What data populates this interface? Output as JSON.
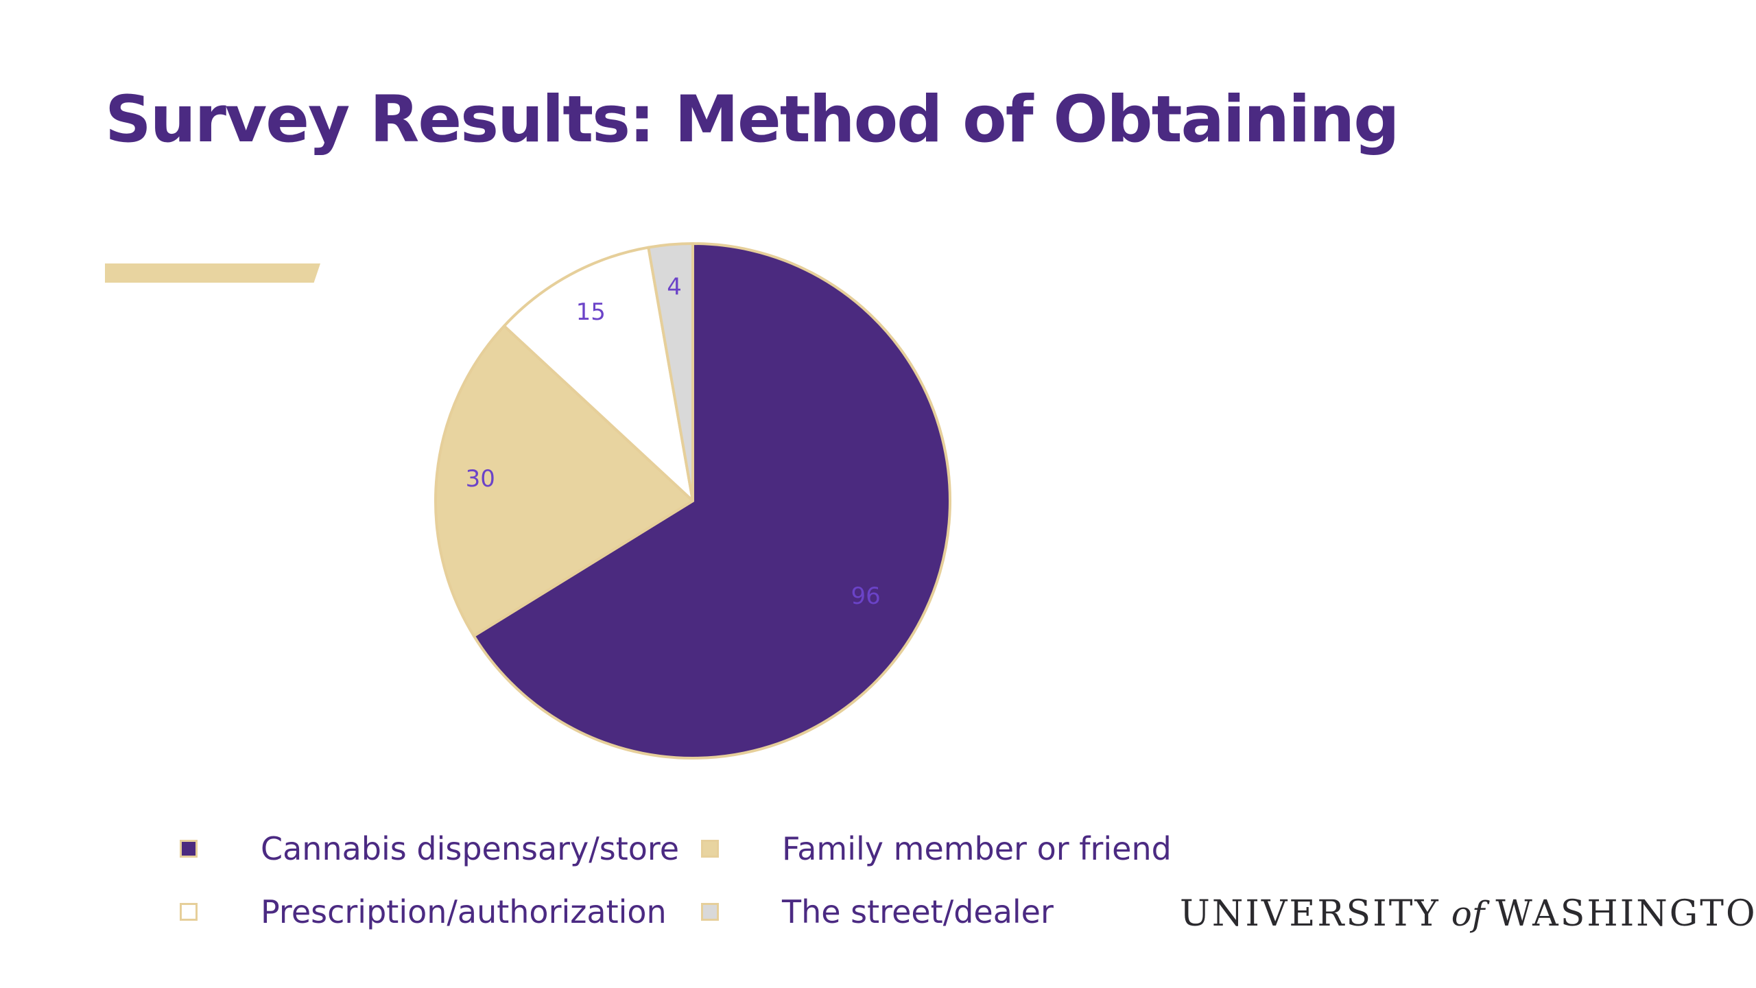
{
  "slide": {
    "title": "Survey Results: Method of Obtaining"
  },
  "colors": {
    "title": "#4b2a82",
    "accent": "#e8d4a0",
    "slice_outline": "#e6cf9a",
    "data_label": "#6b43c8"
  },
  "chart_data": {
    "type": "pie",
    "title": "",
    "start_angle_deg": 0,
    "direction": "clockwise",
    "legend_position": "bottom",
    "slices": [
      {
        "label": "Cannabis dispensary/store",
        "value": 96,
        "color": "#4b2a7f"
      },
      {
        "label": "Family member or friend",
        "value": 30,
        "color": "#e8d4a0"
      },
      {
        "label": "Prescription/authorization",
        "value": 15,
        "color": "#ffffff"
      },
      {
        "label": "The street/dealer",
        "value": 4,
        "color": "#d9d9d9"
      }
    ]
  },
  "logo": {
    "part1": "UNIVERSITY",
    "part2": "of",
    "part3": "WASHINGTON"
  }
}
